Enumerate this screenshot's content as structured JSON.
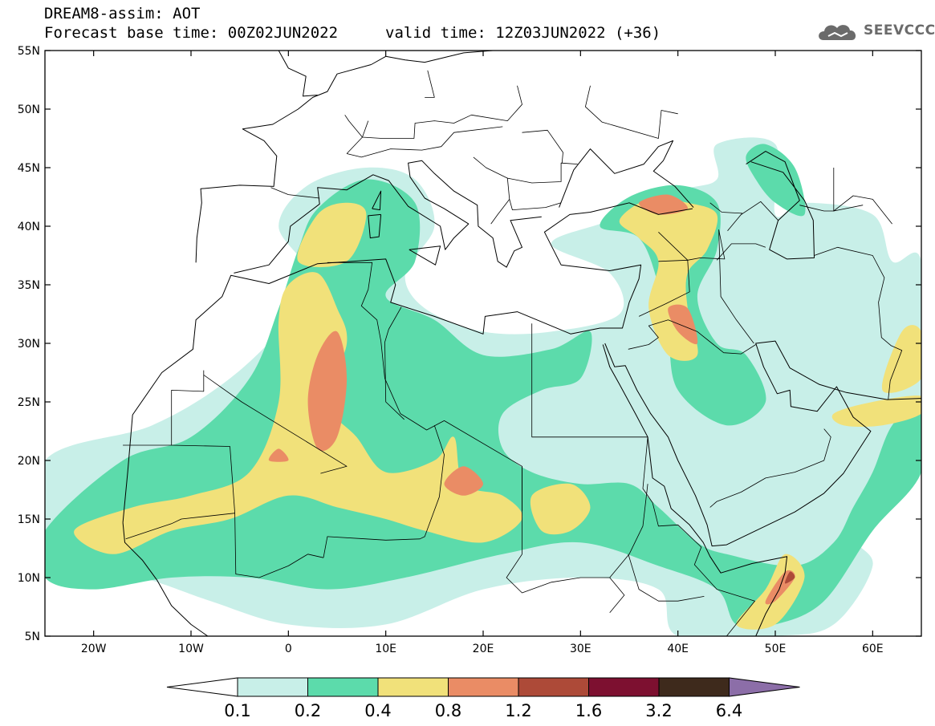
{
  "header": {
    "title": "DREAM8-assim: AOT",
    "base_time": "Forecast base time: 00Z02JUN2022",
    "valid_time": "valid time: 12Z03JUN2022 (+36)"
  },
  "logo": {
    "text": "SEEVCCC",
    "icon": "cloud-logo-icon"
  },
  "map": {
    "projection": "lat-lon",
    "lon_range": [
      -25,
      65
    ],
    "lat_range": [
      5,
      55
    ],
    "lon_ticks": [
      {
        "value": -20,
        "label": "20W"
      },
      {
        "value": -10,
        "label": "10W"
      },
      {
        "value": 0,
        "label": "0"
      },
      {
        "value": 10,
        "label": "10E"
      },
      {
        "value": 20,
        "label": "20E"
      },
      {
        "value": 30,
        "label": "30E"
      },
      {
        "value": 40,
        "label": "40E"
      },
      {
        "value": 50,
        "label": "50E"
      },
      {
        "value": 60,
        "label": "60E"
      }
    ],
    "lat_ticks": [
      {
        "value": 55,
        "label": "55N"
      },
      {
        "value": 50,
        "label": "50N"
      },
      {
        "value": 45,
        "label": "45N"
      },
      {
        "value": 40,
        "label": "40N"
      },
      {
        "value": 35,
        "label": "35N"
      },
      {
        "value": 30,
        "label": "30N"
      },
      {
        "value": 25,
        "label": "25N"
      },
      {
        "value": 20,
        "label": "20N"
      },
      {
        "value": 15,
        "label": "15N"
      },
      {
        "value": 10,
        "label": "10N"
      },
      {
        "value": 5,
        "label": "5N"
      }
    ]
  },
  "colorbar": {
    "levels": [
      "0.1",
      "0.2",
      "0.4",
      "0.8",
      "1.2",
      "1.6",
      "3.2",
      "6.4"
    ],
    "colors": [
      "#ffffff",
      "#c8efe8",
      "#5cdbab",
      "#f1e17a",
      "#ea8c65",
      "#ad4a38",
      "#7d1030",
      "#3e2a1c",
      "#8c6ea8"
    ]
  },
  "chart_data": {
    "type": "heatmap",
    "title": "DREAM8-assim: AOT",
    "xlabel": "",
    "ylabel": "",
    "xlim": [
      -25,
      65
    ],
    "ylim": [
      5,
      55
    ],
    "levels": [
      0.1,
      0.2,
      0.4,
      0.8,
      1.2,
      1.6,
      3.2,
      6.4
    ],
    "regions": [
      {
        "level": 0.1,
        "lonlat": [
          [
            -25,
            20
          ],
          [
            -14,
            23
          ],
          [
            -6,
            27
          ],
          [
            0,
            32
          ],
          [
            2,
            36
          ],
          [
            -1,
            40
          ],
          [
            2,
            43.5
          ],
          [
            8,
            45
          ],
          [
            13,
            44
          ],
          [
            15,
            40
          ],
          [
            12,
            36
          ],
          [
            14,
            33
          ],
          [
            20,
            31
          ],
          [
            27,
            31
          ],
          [
            34,
            32.5
          ],
          [
            33,
            36
          ],
          [
            27,
            38.5
          ],
          [
            33,
            40.5
          ],
          [
            40,
            43
          ],
          [
            44,
            44
          ],
          [
            44,
            47
          ],
          [
            50,
            47
          ],
          [
            50,
            41
          ],
          [
            53,
            42
          ],
          [
            60,
            41
          ],
          [
            62,
            37
          ],
          [
            65,
            37
          ],
          [
            65,
            25
          ],
          [
            62,
            20
          ],
          [
            58,
            14
          ],
          [
            60,
            11
          ],
          [
            56,
            6
          ],
          [
            50,
            5
          ],
          [
            40,
            5
          ],
          [
            38,
            9
          ],
          [
            30,
            10
          ],
          [
            20,
            9
          ],
          [
            10,
            6
          ],
          [
            0,
            6
          ],
          [
            -8,
            8
          ],
          [
            -15,
            10
          ],
          [
            -25,
            12
          ]
        ]
      },
      {
        "level": 0.2,
        "lonlat": [
          [
            -25,
            14
          ],
          [
            -17,
            20
          ],
          [
            -10,
            22
          ],
          [
            -4,
            27
          ],
          [
            -1,
            33
          ],
          [
            1,
            38
          ],
          [
            3,
            41.5
          ],
          [
            8,
            44
          ],
          [
            13,
            42
          ],
          [
            13,
            37
          ],
          [
            10,
            34
          ],
          [
            15,
            32
          ],
          [
            20,
            29
          ],
          [
            27,
            29.5
          ],
          [
            31,
            31
          ],
          [
            30,
            27
          ],
          [
            26,
            26
          ],
          [
            22,
            24
          ],
          [
            22,
            21
          ],
          [
            25,
            19
          ],
          [
            30,
            18
          ],
          [
            35,
            18
          ],
          [
            38,
            16
          ],
          [
            42,
            13
          ],
          [
            45,
            12
          ],
          [
            52,
            11
          ],
          [
            56,
            13
          ],
          [
            58,
            16
          ],
          [
            60,
            19
          ],
          [
            62,
            23
          ],
          [
            65,
            25
          ],
          [
            65,
            19
          ],
          [
            60,
            14
          ],
          [
            55,
            8
          ],
          [
            50,
            6
          ],
          [
            46,
            6
          ],
          [
            44,
            9
          ],
          [
            38,
            11
          ],
          [
            30,
            13
          ],
          [
            22,
            12
          ],
          [
            12,
            10
          ],
          [
            4,
            9
          ],
          [
            -4,
            10
          ],
          [
            -12,
            10
          ],
          [
            -20,
            9
          ],
          [
            -25,
            10
          ]
        ]
      },
      {
        "level": 0.2,
        "lonlat": [
          [
            32,
            40
          ],
          [
            35,
            42.5
          ],
          [
            40,
            43.5
          ],
          [
            44,
            42
          ],
          [
            44,
            38
          ],
          [
            42,
            34
          ],
          [
            44,
            30
          ],
          [
            47,
            29
          ],
          [
            49,
            25
          ],
          [
            45,
            23
          ],
          [
            40,
            26
          ],
          [
            39,
            31
          ],
          [
            38,
            35
          ],
          [
            36,
            39
          ]
        ]
      },
      {
        "level": 0.2,
        "lonlat": [
          [
            47,
            46
          ],
          [
            49,
            47
          ],
          [
            52,
            45
          ],
          [
            53,
            41
          ],
          [
            50,
            42
          ],
          [
            48,
            44
          ]
        ]
      },
      {
        "level": 0.4,
        "lonlat": [
          [
            -22,
            14
          ],
          [
            -16,
            16
          ],
          [
            -10,
            17
          ],
          [
            -4,
            19
          ],
          [
            -1,
            25
          ],
          [
            -1,
            32
          ],
          [
            0,
            35
          ],
          [
            3,
            36
          ],
          [
            5,
            33
          ],
          [
            6,
            30
          ],
          [
            4,
            25
          ],
          [
            7,
            22
          ],
          [
            10,
            19
          ],
          [
            15,
            20
          ],
          [
            17,
            22
          ],
          [
            18,
            18
          ],
          [
            22,
            17
          ],
          [
            24,
            15
          ],
          [
            20,
            13
          ],
          [
            14,
            14
          ],
          [
            10,
            15
          ],
          [
            5,
            16
          ],
          [
            0,
            17
          ],
          [
            -6,
            15
          ],
          [
            -12,
            14
          ],
          [
            -18,
            12
          ]
        ]
      },
      {
        "level": 0.4,
        "lonlat": [
          [
            1,
            37
          ],
          [
            3,
            41
          ],
          [
            6,
            42
          ],
          [
            8,
            41
          ],
          [
            6,
            37
          ]
        ]
      },
      {
        "level": 0.4,
        "lonlat": [
          [
            34,
            40.5
          ],
          [
            37,
            42.3
          ],
          [
            41,
            42
          ],
          [
            44,
            41
          ],
          [
            43,
            38
          ],
          [
            41,
            36
          ],
          [
            41,
            33
          ],
          [
            42,
            29
          ],
          [
            39,
            29
          ],
          [
            37,
            33
          ],
          [
            38,
            37
          ],
          [
            36,
            39
          ]
        ]
      },
      {
        "level": 0.4,
        "lonlat": [
          [
            25,
            17
          ],
          [
            29,
            18
          ],
          [
            31,
            16
          ],
          [
            29,
            14
          ],
          [
            26,
            14
          ]
        ]
      },
      {
        "level": 0.4,
        "lonlat": [
          [
            46,
            6
          ],
          [
            49,
            9
          ],
          [
            51,
            12
          ],
          [
            53,
            10
          ],
          [
            50,
            6
          ]
        ]
      },
      {
        "level": 0.4,
        "lonlat": [
          [
            56,
            24
          ],
          [
            60,
            25
          ],
          [
            65,
            25.5
          ],
          [
            65,
            24
          ],
          [
            61,
            23
          ],
          [
            57,
            23
          ]
        ]
      },
      {
        "level": 0.4,
        "lonlat": [
          [
            61,
            26
          ],
          [
            63,
            31
          ],
          [
            65,
            31
          ],
          [
            65,
            27
          ]
        ]
      },
      {
        "level": 0.8,
        "lonlat": [
          [
            2,
            25
          ],
          [
            3,
            29
          ],
          [
            5,
            31
          ],
          [
            6,
            27
          ],
          [
            5,
            22
          ],
          [
            3,
            21
          ]
        ]
      },
      {
        "level": 0.8,
        "lonlat": [
          [
            16,
            18
          ],
          [
            18,
            19.5
          ],
          [
            20,
            18
          ],
          [
            18,
            17
          ]
        ]
      },
      {
        "level": 0.8,
        "lonlat": [
          [
            36,
            42
          ],
          [
            39,
            42.7
          ],
          [
            41,
            41.5
          ],
          [
            38,
            41
          ]
        ]
      },
      {
        "level": 0.8,
        "lonlat": [
          [
            39,
            33
          ],
          [
            40,
            31
          ],
          [
            42,
            30
          ],
          [
            41,
            33
          ]
        ]
      },
      {
        "level": 0.8,
        "lonlat": [
          [
            49,
            8
          ],
          [
            51,
            10.5
          ],
          [
            52,
            10
          ],
          [
            50,
            8
          ]
        ]
      },
      {
        "level": 0.8,
        "lonlat": [
          [
            -2,
            20
          ],
          [
            -1,
            21
          ],
          [
            0,
            20
          ]
        ]
      },
      {
        "level": 1.2,
        "lonlat": [
          [
            51,
            9.5
          ],
          [
            51.5,
            10.5
          ],
          [
            52,
            10
          ]
        ]
      }
    ]
  }
}
